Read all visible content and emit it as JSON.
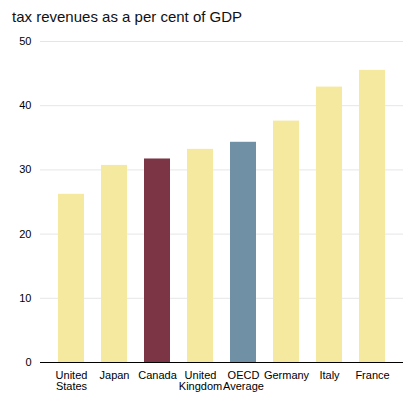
{
  "chart_data": {
    "type": "bar",
    "title": "tax revenues as a per cent of GDP",
    "categories": [
      "United\nStates",
      "Japan",
      "Canada",
      "United\nKingdom",
      "OECD\nAverage",
      "Germany",
      "Italy",
      "France"
    ],
    "values": [
      26.2,
      30.7,
      31.7,
      33.2,
      34.3,
      37.6,
      42.9,
      45.5
    ],
    "colors": [
      "#f5e9a0",
      "#f5e9a0",
      "#7b3545",
      "#f5e9a0",
      "#7090a5",
      "#f5e9a0",
      "#f5e9a0",
      "#f5e9a0"
    ],
    "ylim": [
      0,
      50
    ],
    "yticks": [
      0,
      10,
      20,
      30,
      40,
      50
    ],
    "grid": true
  }
}
